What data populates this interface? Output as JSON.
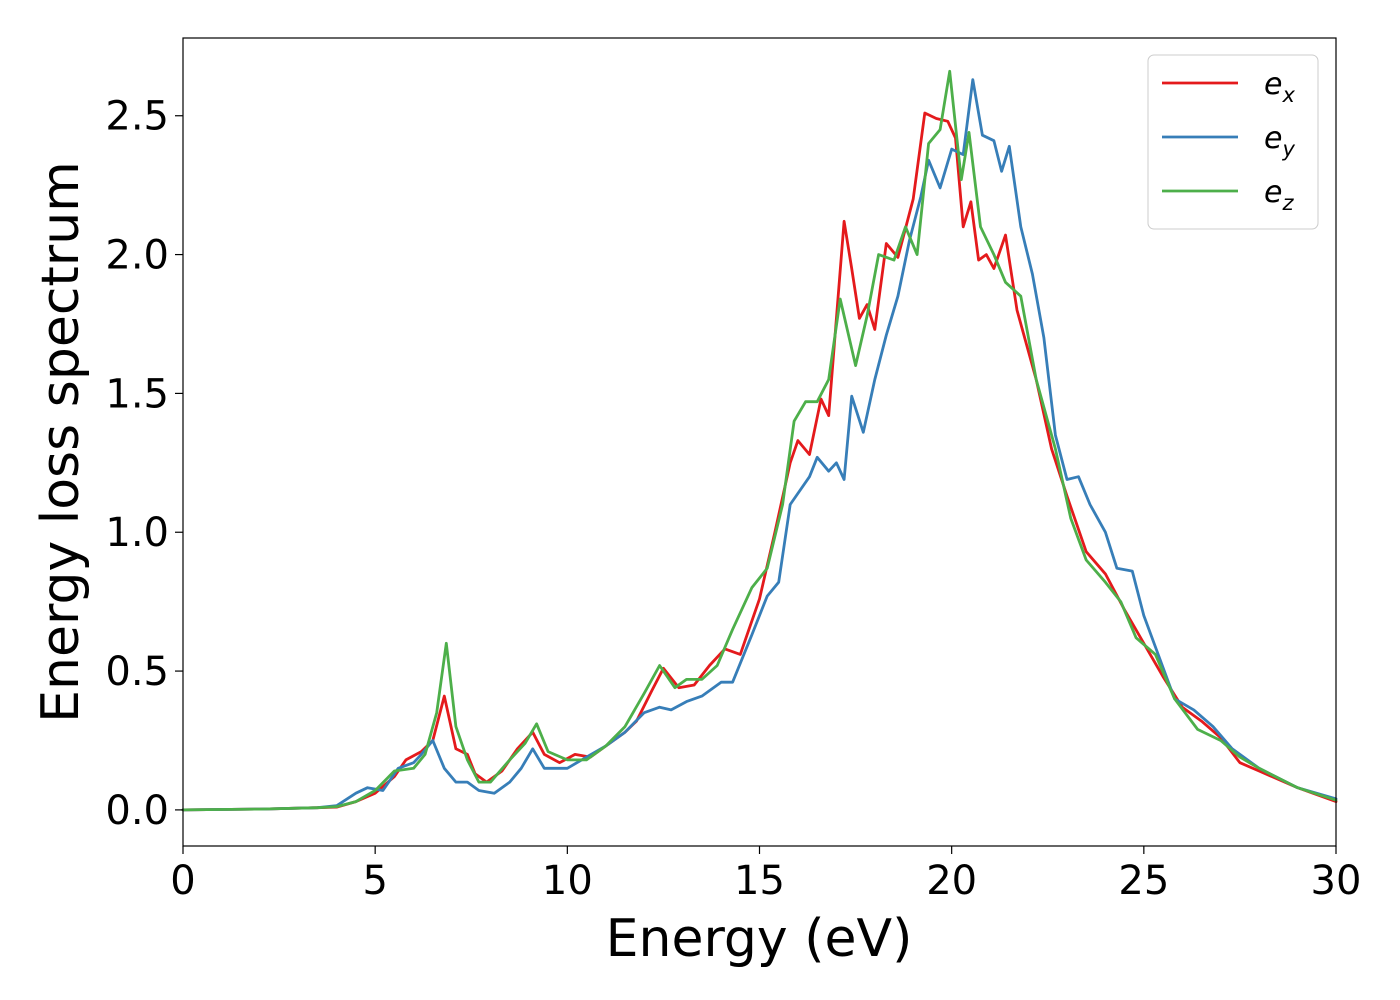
{
  "chart_data": {
    "type": "line",
    "title": "",
    "xlabel": "Energy (eV)",
    "ylabel": "Energy loss spectrum",
    "xlim": [
      0,
      30
    ],
    "ylim": [
      -0.13,
      2.78
    ],
    "x_ticks": [
      0,
      5,
      10,
      15,
      20,
      25,
      30
    ],
    "x_tick_labels": [
      "0",
      "5",
      "10",
      "15",
      "20",
      "25",
      "30"
    ],
    "y_ticks": [
      0.0,
      0.5,
      1.0,
      1.5,
      2.0,
      2.5
    ],
    "y_tick_labels": [
      "0.0",
      "0.5",
      "1.0",
      "1.5",
      "2.0",
      "2.5"
    ],
    "grid": false,
    "legend_position": "top-right",
    "series": [
      {
        "name": "e",
        "subscript": "x",
        "color": "#e41a1c",
        "points": [
          [
            0,
            0
          ],
          [
            2,
            0.003
          ],
          [
            3.5,
            0.008
          ],
          [
            4,
            0.01
          ],
          [
            4.5,
            0.03
          ],
          [
            5,
            0.06
          ],
          [
            5.5,
            0.12
          ],
          [
            5.8,
            0.18
          ],
          [
            6.2,
            0.21
          ],
          [
            6.5,
            0.25
          ],
          [
            6.8,
            0.41
          ],
          [
            7.1,
            0.22
          ],
          [
            7.4,
            0.2
          ],
          [
            7.6,
            0.13
          ],
          [
            7.9,
            0.1
          ],
          [
            8.3,
            0.14
          ],
          [
            8.7,
            0.22
          ],
          [
            9.1,
            0.28
          ],
          [
            9.4,
            0.2
          ],
          [
            9.8,
            0.17
          ],
          [
            10.2,
            0.2
          ],
          [
            10.6,
            0.19
          ],
          [
            11,
            0.23
          ],
          [
            11.5,
            0.28
          ],
          [
            11.8,
            0.32
          ],
          [
            12.2,
            0.43
          ],
          [
            12.5,
            0.51
          ],
          [
            12.9,
            0.44
          ],
          [
            13.3,
            0.45
          ],
          [
            13.7,
            0.52
          ],
          [
            14.1,
            0.58
          ],
          [
            14.5,
            0.56
          ],
          [
            15,
            0.76
          ],
          [
            15.4,
            1.0
          ],
          [
            15.8,
            1.25
          ],
          [
            16,
            1.33
          ],
          [
            16.3,
            1.28
          ],
          [
            16.6,
            1.48
          ],
          [
            16.8,
            1.42
          ],
          [
            17.2,
            2.12
          ],
          [
            17.4,
            1.95
          ],
          [
            17.6,
            1.77
          ],
          [
            17.8,
            1.82
          ],
          [
            18,
            1.73
          ],
          [
            18.3,
            2.04
          ],
          [
            18.6,
            1.99
          ],
          [
            19,
            2.2
          ],
          [
            19.3,
            2.51
          ],
          [
            19.6,
            2.49
          ],
          [
            19.9,
            2.48
          ],
          [
            20.1,
            2.42
          ],
          [
            20.3,
            2.1
          ],
          [
            20.5,
            2.19
          ],
          [
            20.7,
            1.98
          ],
          [
            20.9,
            2.0
          ],
          [
            21.1,
            1.95
          ],
          [
            21.4,
            2.07
          ],
          [
            21.7,
            1.8
          ],
          [
            22.2,
            1.55
          ],
          [
            22.6,
            1.3
          ],
          [
            23,
            1.13
          ],
          [
            23.5,
            0.93
          ],
          [
            24,
            0.85
          ],
          [
            24.5,
            0.72
          ],
          [
            25,
            0.6
          ],
          [
            25.5,
            0.48
          ],
          [
            26,
            0.37
          ],
          [
            26.5,
            0.32
          ],
          [
            27,
            0.26
          ],
          [
            27.5,
            0.17
          ],
          [
            28,
            0.14
          ],
          [
            29,
            0.08
          ],
          [
            30,
            0.03
          ]
        ]
      },
      {
        "name": "e",
        "subscript": "y",
        "color": "#377eb8",
        "points": [
          [
            0,
            0
          ],
          [
            2,
            0.003
          ],
          [
            3.5,
            0.008
          ],
          [
            4,
            0.015
          ],
          [
            4.5,
            0.06
          ],
          [
            4.8,
            0.08
          ],
          [
            5.2,
            0.07
          ],
          [
            5.6,
            0.15
          ],
          [
            6,
            0.17
          ],
          [
            6.2,
            0.2
          ],
          [
            6.5,
            0.25
          ],
          [
            6.8,
            0.15
          ],
          [
            7.1,
            0.1
          ],
          [
            7.4,
            0.1
          ],
          [
            7.7,
            0.07
          ],
          [
            8.1,
            0.06
          ],
          [
            8.5,
            0.1
          ],
          [
            8.8,
            0.15
          ],
          [
            9.1,
            0.22
          ],
          [
            9.4,
            0.15
          ],
          [
            10,
            0.15
          ],
          [
            10.5,
            0.19
          ],
          [
            11,
            0.23
          ],
          [
            11.5,
            0.28
          ],
          [
            12,
            0.35
          ],
          [
            12.4,
            0.37
          ],
          [
            12.7,
            0.36
          ],
          [
            13.1,
            0.39
          ],
          [
            13.5,
            0.41
          ],
          [
            14,
            0.46
          ],
          [
            14.3,
            0.46
          ],
          [
            14.8,
            0.63
          ],
          [
            15.2,
            0.77
          ],
          [
            15.5,
            0.82
          ],
          [
            15.8,
            1.1
          ],
          [
            16.3,
            1.2
          ],
          [
            16.5,
            1.27
          ],
          [
            16.8,
            1.22
          ],
          [
            17,
            1.25
          ],
          [
            17.2,
            1.19
          ],
          [
            17.4,
            1.49
          ],
          [
            17.7,
            1.36
          ],
          [
            18,
            1.55
          ],
          [
            18.3,
            1.71
          ],
          [
            18.6,
            1.85
          ],
          [
            18.9,
            2.05
          ],
          [
            19.2,
            2.21
          ],
          [
            19.4,
            2.34
          ],
          [
            19.7,
            2.24
          ],
          [
            20,
            2.38
          ],
          [
            20.3,
            2.36
          ],
          [
            20.55,
            2.63
          ],
          [
            20.8,
            2.43
          ],
          [
            21.1,
            2.41
          ],
          [
            21.3,
            2.3
          ],
          [
            21.5,
            2.39
          ],
          [
            21.8,
            2.1
          ],
          [
            22.1,
            1.93
          ],
          [
            22.4,
            1.7
          ],
          [
            22.7,
            1.35
          ],
          [
            23,
            1.19
          ],
          [
            23.3,
            1.2
          ],
          [
            23.6,
            1.1
          ],
          [
            24,
            1.0
          ],
          [
            24.3,
            0.87
          ],
          [
            24.7,
            0.86
          ],
          [
            25,
            0.7
          ],
          [
            25.4,
            0.55
          ],
          [
            25.8,
            0.4
          ],
          [
            26.3,
            0.36
          ],
          [
            26.8,
            0.3
          ],
          [
            27.3,
            0.22
          ],
          [
            28,
            0.15
          ],
          [
            29,
            0.08
          ],
          [
            30,
            0.04
          ]
        ]
      },
      {
        "name": "e",
        "subscript": "z",
        "color": "#4daf4a",
        "points": [
          [
            0,
            0
          ],
          [
            2,
            0.003
          ],
          [
            3.5,
            0.008
          ],
          [
            4,
            0.012
          ],
          [
            4.5,
            0.03
          ],
          [
            5,
            0.07
          ],
          [
            5.5,
            0.14
          ],
          [
            6,
            0.15
          ],
          [
            6.3,
            0.2
          ],
          [
            6.6,
            0.35
          ],
          [
            6.85,
            0.6
          ],
          [
            7.1,
            0.3
          ],
          [
            7.4,
            0.18
          ],
          [
            7.7,
            0.1
          ],
          [
            8,
            0.1
          ],
          [
            8.5,
            0.18
          ],
          [
            8.9,
            0.24
          ],
          [
            9.2,
            0.31
          ],
          [
            9.5,
            0.21
          ],
          [
            10,
            0.18
          ],
          [
            10.5,
            0.18
          ],
          [
            11,
            0.23
          ],
          [
            11.5,
            0.3
          ],
          [
            12,
            0.42
          ],
          [
            12.4,
            0.52
          ],
          [
            12.8,
            0.44
          ],
          [
            13.1,
            0.47
          ],
          [
            13.5,
            0.47
          ],
          [
            13.9,
            0.52
          ],
          [
            14.3,
            0.65
          ],
          [
            14.8,
            0.8
          ],
          [
            15.2,
            0.87
          ],
          [
            15.6,
            1.1
          ],
          [
            15.9,
            1.4
          ],
          [
            16.2,
            1.47
          ],
          [
            16.5,
            1.47
          ],
          [
            16.8,
            1.55
          ],
          [
            17.1,
            1.84
          ],
          [
            17.5,
            1.6
          ],
          [
            17.8,
            1.78
          ],
          [
            18.1,
            2.0
          ],
          [
            18.5,
            1.98
          ],
          [
            18.8,
            2.1
          ],
          [
            19.1,
            2.0
          ],
          [
            19.4,
            2.4
          ],
          [
            19.7,
            2.45
          ],
          [
            19.95,
            2.66
          ],
          [
            20.25,
            2.27
          ],
          [
            20.45,
            2.44
          ],
          [
            20.75,
            2.1
          ],
          [
            21.1,
            2.0
          ],
          [
            21.4,
            1.9
          ],
          [
            21.8,
            1.85
          ],
          [
            22.2,
            1.55
          ],
          [
            22.7,
            1.3
          ],
          [
            23.1,
            1.05
          ],
          [
            23.5,
            0.9
          ],
          [
            24,
            0.82
          ],
          [
            24.4,
            0.75
          ],
          [
            24.8,
            0.62
          ],
          [
            25.3,
            0.56
          ],
          [
            25.8,
            0.4
          ],
          [
            26.4,
            0.29
          ],
          [
            27,
            0.25
          ],
          [
            27.5,
            0.19
          ],
          [
            28,
            0.15
          ],
          [
            29,
            0.08
          ],
          [
            30,
            0.035
          ]
        ]
      }
    ]
  }
}
